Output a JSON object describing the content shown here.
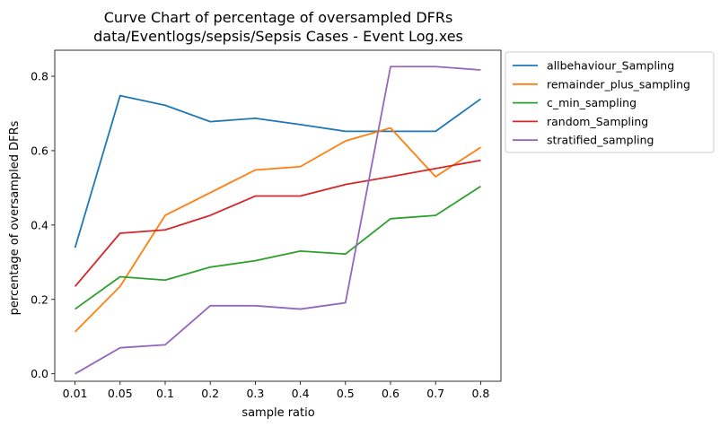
{
  "chart_data": {
    "type": "line",
    "title": "Curve Chart of percentage of oversampled DFRs",
    "subtitle": "data/Eventlogs/sepsis/Sepsis Cases - Event Log.xes",
    "xlabel": "sample ratio",
    "ylabel": "percentage of oversampled DFRs",
    "categories": [
      "0.01",
      "0.05",
      "0.1",
      "0.2",
      "0.3",
      "0.4",
      "0.5",
      "0.6",
      "0.7",
      "0.8"
    ],
    "ylim": [
      -0.02,
      0.87
    ],
    "yticks": [
      "0.0",
      "0.2",
      "0.4",
      "0.6",
      "0.8"
    ],
    "grid": false,
    "legend_position": "outside-top-right",
    "series": [
      {
        "name": "allbehaviour_Sampling",
        "color": "#1f77b4",
        "values": [
          0.339,
          0.748,
          0.722,
          0.678,
          0.687,
          0.67,
          0.652,
          0.652,
          0.652,
          0.739
        ]
      },
      {
        "name": "remainder_plus_sampling",
        "color": "#ff7f0e",
        "values": [
          0.113,
          0.235,
          0.426,
          0.487,
          0.548,
          0.557,
          0.626,
          0.661,
          0.53,
          0.609
        ]
      },
      {
        "name": "c_min_sampling",
        "color": "#2ca02c",
        "values": [
          0.174,
          0.261,
          0.252,
          0.287,
          0.304,
          0.33,
          0.322,
          0.417,
          0.426,
          0.504
        ]
      },
      {
        "name": "random_Sampling",
        "color": "#d62728",
        "values": [
          0.235,
          0.378,
          0.387,
          0.426,
          0.478,
          0.478,
          0.509,
          0.53,
          0.552,
          0.574
        ]
      },
      {
        "name": "stratified_sampling",
        "color": "#9467bd",
        "values": [
          0.0,
          0.07,
          0.078,
          0.183,
          0.183,
          0.174,
          0.191,
          0.826,
          0.826,
          0.817
        ]
      }
    ]
  }
}
